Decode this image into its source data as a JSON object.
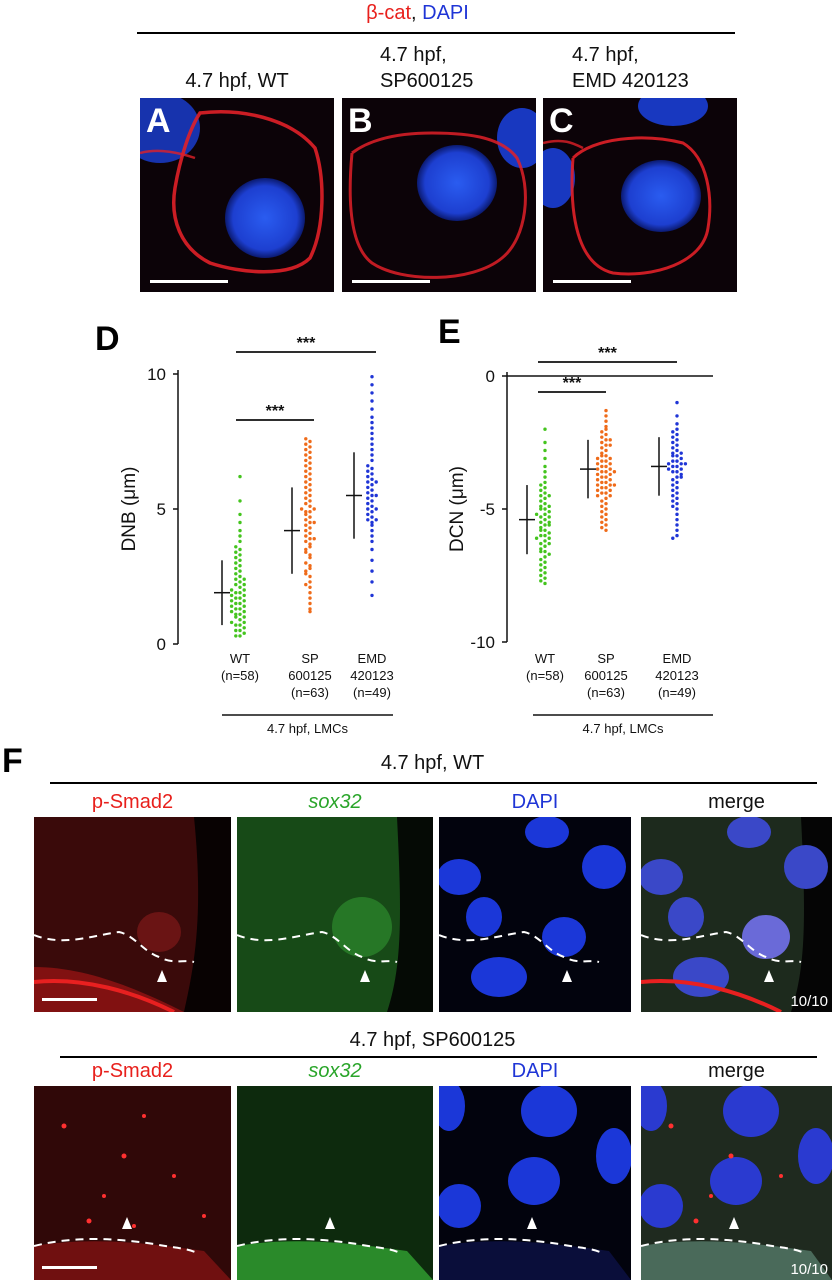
{
  "top_header": {
    "beta_cat": "β-cat",
    "comma": ",",
    "dapi": "DAPI"
  },
  "panels_abc": [
    {
      "letter": "A",
      "caption": "4.7 hpf, WT"
    },
    {
      "letter": "B",
      "caption_line1": "4.7 hpf,",
      "caption_line2": "SP600125"
    },
    {
      "letter": "C",
      "caption_line1": "4.7 hpf,",
      "caption_line2": "EMD 420123"
    }
  ],
  "panel_d": {
    "letter": "D"
  },
  "panel_e": {
    "letter": "E"
  },
  "chart_data": [
    {
      "type": "scatter",
      "panel": "D",
      "ylabel": "DNB (μm)",
      "ylim": [
        0,
        10
      ],
      "yticks": [
        0,
        5,
        10
      ],
      "categories": [
        {
          "name": "WT",
          "sub1": "(n=58)",
          "sub2": "",
          "color": "#44c41e"
        },
        {
          "name": "SP",
          "sub1": "600125",
          "sub2": "(n=63)",
          "color": "#ef6b1a"
        },
        {
          "name": "EMD",
          "sub1": "420123",
          "sub2": "(n=49)",
          "color": "#1f35d6"
        }
      ],
      "group_label": "4.7 hpf, LMCs",
      "mean": [
        1.9,
        4.2,
        5.5
      ],
      "sd": [
        1.2,
        1.6,
        1.6
      ],
      "series": [
        {
          "values": [
            0.3,
            0.3,
            0.4,
            0.5,
            0.5,
            0.6,
            0.7,
            0.7,
            0.8,
            0.8,
            0.9,
            1.0,
            1.0,
            1.1,
            1.1,
            1.2,
            1.2,
            1.3,
            1.3,
            1.4,
            1.4,
            1.5,
            1.5,
            1.6,
            1.6,
            1.7,
            1.7,
            1.8,
            1.8,
            1.9,
            1.9,
            2.0,
            2.0,
            2.1,
            2.2,
            2.2,
            2.3,
            2.4,
            2.4,
            2.5,
            2.6,
            2.7,
            2.8,
            2.9,
            3.0,
            3.1,
            3.2,
            3.3,
            3.4,
            3.5,
            3.6,
            3.8,
            4.0,
            4.2,
            4.5,
            4.8,
            5.3,
            6.2
          ]
        },
        {
          "values": [
            1.2,
            1.3,
            1.5,
            1.7,
            1.9,
            2.1,
            2.3,
            2.5,
            2.6,
            2.8,
            2.9,
            3.0,
            3.2,
            3.3,
            3.4,
            3.6,
            3.7,
            3.8,
            3.9,
            4.0,
            4.1,
            4.2,
            4.3,
            4.4,
            4.5,
            4.6,
            4.7,
            4.8,
            4.9,
            4.9,
            5.0,
            5.1,
            5.2,
            5.3,
            5.4,
            5.5,
            5.6,
            5.7,
            5.8,
            5.9,
            6.0,
            6.1,
            6.2,
            6.3,
            6.4,
            6.5,
            6.6,
            6.7,
            6.8,
            6.9,
            7.0,
            7.1,
            7.2,
            7.3,
            7.4,
            7.5,
            7.6,
            5.0,
            4.5,
            3.9,
            3.5,
            2.7,
            2.2
          ]
        },
        {
          "values": [
            1.8,
            2.3,
            2.7,
            3.1,
            3.5,
            3.8,
            4.0,
            4.2,
            4.4,
            4.5,
            4.6,
            4.7,
            4.8,
            4.9,
            5.0,
            5.1,
            5.2,
            5.3,
            5.4,
            5.5,
            5.6,
            5.7,
            5.8,
            5.9,
            6.0,
            6.1,
            6.2,
            6.3,
            6.4,
            6.5,
            6.6,
            6.8,
            7.0,
            7.2,
            7.4,
            7.6,
            7.8,
            8.0,
            8.2,
            8.4,
            8.7,
            9.0,
            9.3,
            9.6,
            9.9,
            5.5,
            5.0,
            4.6,
            6.0
          ]
        }
      ],
      "significance": [
        {
          "from": 0,
          "to": 1,
          "label": "***"
        },
        {
          "from": 0,
          "to": 2,
          "label": "***"
        }
      ]
    },
    {
      "type": "scatter",
      "panel": "E",
      "ylabel": "DCN (μm)",
      "ylim": [
        -10,
        0
      ],
      "yticks": [
        0,
        -5,
        -10
      ],
      "categories": [
        {
          "name": "WT",
          "sub1": "(n=58)",
          "sub2": "",
          "color": "#44c41e"
        },
        {
          "name": "SP",
          "sub1": "600125",
          "sub2": "(n=63)",
          "color": "#ef6b1a"
        },
        {
          "name": "EMD",
          "sub1": "420123",
          "sub2": "(n=49)",
          "color": "#1f35d6"
        }
      ],
      "group_label": "4.7 hpf, LMCs",
      "mean": [
        -5.4,
        -3.5,
        -3.4
      ],
      "sd": [
        1.3,
        1.1,
        1.1
      ],
      "series": [
        {
          "values": [
            -2.0,
            -2.5,
            -2.8,
            -3.1,
            -3.4,
            -3.6,
            -3.8,
            -4.0,
            -4.1,
            -4.2,
            -4.3,
            -4.4,
            -4.5,
            -4.6,
            -4.7,
            -4.8,
            -4.9,
            -5.0,
            -5.0,
            -5.1,
            -5.2,
            -5.3,
            -5.3,
            -5.4,
            -5.5,
            -5.5,
            -5.6,
            -5.7,
            -5.8,
            -5.8,
            -5.9,
            -6.0,
            -6.0,
            -6.1,
            -6.2,
            -6.3,
            -6.3,
            -6.4,
            -6.5,
            -6.6,
            -6.6,
            -6.7,
            -6.8,
            -6.9,
            -7.0,
            -7.1,
            -7.2,
            -7.3,
            -7.4,
            -7.5,
            -7.6,
            -7.7,
            -7.8,
            -5.2,
            -4.9,
            -5.6,
            -6.1,
            -4.5
          ]
        },
        {
          "values": [
            -1.3,
            -1.5,
            -1.7,
            -1.9,
            -2.0,
            -2.1,
            -2.2,
            -2.3,
            -2.4,
            -2.5,
            -2.6,
            -2.7,
            -2.8,
            -2.9,
            -3.0,
            -3.0,
            -3.1,
            -3.2,
            -3.2,
            -3.3,
            -3.3,
            -3.4,
            -3.4,
            -3.5,
            -3.5,
            -3.6,
            -3.6,
            -3.7,
            -3.7,
            -3.8,
            -3.8,
            -3.9,
            -3.9,
            -4.0,
            -4.0,
            -4.1,
            -4.1,
            -4.2,
            -4.2,
            -4.3,
            -4.3,
            -4.4,
            -4.4,
            -4.5,
            -4.5,
            -4.6,
            -4.7,
            -4.8,
            -4.9,
            -5.0,
            -5.1,
            -5.2,
            -5.3,
            -5.4,
            -5.5,
            -5.6,
            -5.7,
            -5.8,
            -2.6,
            -3.1,
            -3.6,
            -4.1,
            -2.4
          ]
        },
        {
          "values": [
            -1.0,
            -1.5,
            -1.8,
            -2.0,
            -2.2,
            -2.3,
            -2.4,
            -2.5,
            -2.6,
            -2.7,
            -2.8,
            -2.9,
            -3.0,
            -3.0,
            -3.1,
            -3.2,
            -3.2,
            -3.3,
            -3.3,
            -3.4,
            -3.4,
            -3.5,
            -3.5,
            -3.6,
            -3.6,
            -3.7,
            -3.8,
            -3.9,
            -4.0,
            -4.1,
            -4.2,
            -4.3,
            -4.4,
            -4.5,
            -4.6,
            -4.7,
            -4.8,
            -4.9,
            -5.0,
            -5.2,
            -5.4,
            -5.6,
            -5.8,
            -6.0,
            -6.1,
            -2.9,
            -3.3,
            -3.8,
            -2.1
          ]
        }
      ],
      "significance": [
        {
          "from": 0,
          "to": 1,
          "label": "***"
        },
        {
          "from": 0,
          "to": 2,
          "label": "***"
        }
      ]
    }
  ],
  "panel_f": {
    "letter": "F",
    "row1_title": "4.7 hpf, WT",
    "row2_title": "4.7 hpf, SP600125",
    "col_labels": [
      "p-Smad2",
      "sox32",
      "DAPI",
      "merge"
    ],
    "count_row1": "10/10",
    "count_row2": "10/10"
  }
}
